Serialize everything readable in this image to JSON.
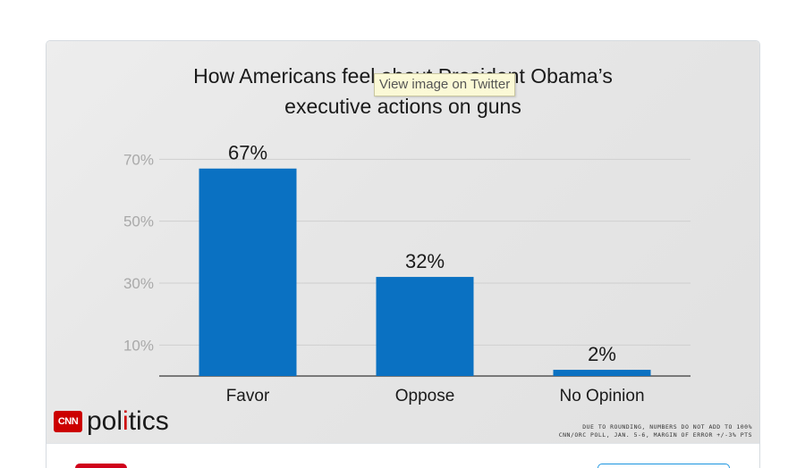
{
  "title_line1": "How Americans feel about President Obama’s",
  "title_line2": "executive actions on guns",
  "tooltip": "View image on Twitter",
  "logo": {
    "cnn": "CNN",
    "politics_a": "pol",
    "politics_i": "i",
    "politics_b": "tics"
  },
  "footnote_line1": "DUE TO ROUNDING, NUMBERS DO NOT ADD TO 100%",
  "footnote_line2": "CNN/ORC POLL, JAN. 5-6, MARGIN OF ERROR +/-3% PTS",
  "colors": {
    "bar": "#0a71c2",
    "grid": "#cfcfcf",
    "axis": "#555555",
    "brand_red": "#cc0000"
  },
  "chart_data": {
    "type": "bar",
    "title": "How Americans feel about President Obama’s executive actions on guns",
    "categories": [
      "Favor",
      "Oppose",
      "No Opinion"
    ],
    "values": [
      67,
      32,
      2
    ],
    "data_labels": [
      "67%",
      "32%",
      "2%"
    ],
    "yticks": [
      10,
      30,
      50,
      70
    ],
    "ytick_labels": [
      "10%",
      "30%",
      "50%",
      "70%"
    ],
    "ylim": [
      0,
      70
    ],
    "xlabel": "",
    "ylabel": "",
    "grid": true
  }
}
